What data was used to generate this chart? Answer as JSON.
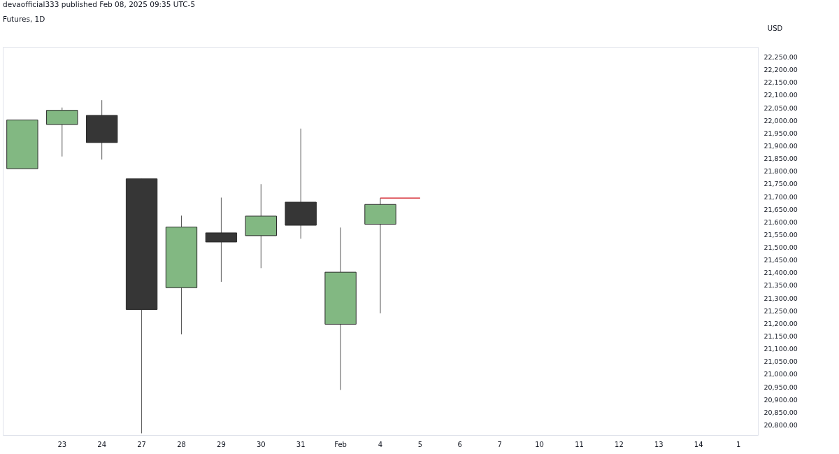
{
  "chart_data": {
    "type": "candlestick",
    "title": "Futures, 1D",
    "ylabel": "USD",
    "annotations": [
      "devaofficial333 published Feb 08, 2025 09:35 UTC-5"
    ],
    "categories": [
      null,
      "23",
      "24",
      "27",
      "28",
      "29",
      "30",
      "31",
      "Feb",
      "4",
      "5",
      "6",
      "7",
      "10",
      "11",
      "12",
      "13",
      "14",
      "1"
    ],
    "ohlc": [
      [
        21810,
        22002,
        21810,
        22002
      ],
      [
        21984,
        22051,
        21858,
        22040
      ],
      [
        22020,
        22080,
        21846,
        21913
      ],
      [
        21770,
        21770,
        20767,
        21255
      ],
      [
        21341,
        21625,
        21157,
        21580
      ],
      [
        21557,
        21696,
        21364,
        21521
      ],
      [
        21546,
        21749,
        21418,
        21623
      ],
      [
        21678,
        21968,
        21534,
        21587
      ],
      [
        21197,
        21578,
        20938,
        21402
      ],
      [
        21591,
        21694,
        21240,
        21669
      ],
      null,
      null,
      null,
      null,
      null,
      null,
      null,
      null,
      null
    ],
    "colors": [
      "#82b882",
      "#82b882",
      "#363636",
      "#363636",
      "#82b882",
      "#363636",
      "#82b882",
      "#363636",
      "#82b882",
      "#82b882",
      null,
      null,
      null,
      null,
      null,
      null,
      null,
      null,
      null
    ],
    "series": [
      {
        "type": "line",
        "color": "#d0101a",
        "x": [
          "4",
          "5"
        ],
        "values": [
          21694,
          21694
        ]
      }
    ],
    "ylim": [
      20760,
      22290
    ],
    "yticks": [
      {
        "value": 20800,
        "label": "20,800.00"
      },
      {
        "value": 20850,
        "label": "20,850.00"
      },
      {
        "value": 20900,
        "label": "20,900.00"
      },
      {
        "value": 20950,
        "label": "20,950.00"
      },
      {
        "value": 21000,
        "label": "21,000.00"
      },
      {
        "value": 21050,
        "label": "21,050.00"
      },
      {
        "value": 21100,
        "label": "21,100.00"
      },
      {
        "value": 21150,
        "label": "21,150.00"
      },
      {
        "value": 21200,
        "label": "21,200.00"
      },
      {
        "value": 21250,
        "label": "21,250.00"
      },
      {
        "value": 21300,
        "label": "21,300.00"
      },
      {
        "value": 21350,
        "label": "21,350.00"
      },
      {
        "value": 21400,
        "label": "21,400.00"
      },
      {
        "value": 21450,
        "label": "21,450.00"
      },
      {
        "value": 21500,
        "label": "21,500.00"
      },
      {
        "value": 21550,
        "label": "21,550.00"
      },
      {
        "value": 21600,
        "label": "21,600.00"
      },
      {
        "value": 21650,
        "label": "21,650.00"
      },
      {
        "value": 21700,
        "label": "21,700.00"
      },
      {
        "value": 21750,
        "label": "21,750.00"
      },
      {
        "value": 21800,
        "label": "21,800.00"
      },
      {
        "value": 21850,
        "label": "21,850.00"
      },
      {
        "value": 21900,
        "label": "21,900.00"
      },
      {
        "value": 21950,
        "label": "21,950.00"
      },
      {
        "value": 22000,
        "label": "22,000.00"
      },
      {
        "value": 22050,
        "label": "22,050.00"
      },
      {
        "value": 22100,
        "label": "22,100.00"
      },
      {
        "value": 22150,
        "label": "22,150.00"
      },
      {
        "value": 22200,
        "label": "22,200.00"
      },
      {
        "value": 22250,
        "label": "22,250.00"
      }
    ],
    "grid": false
  }
}
